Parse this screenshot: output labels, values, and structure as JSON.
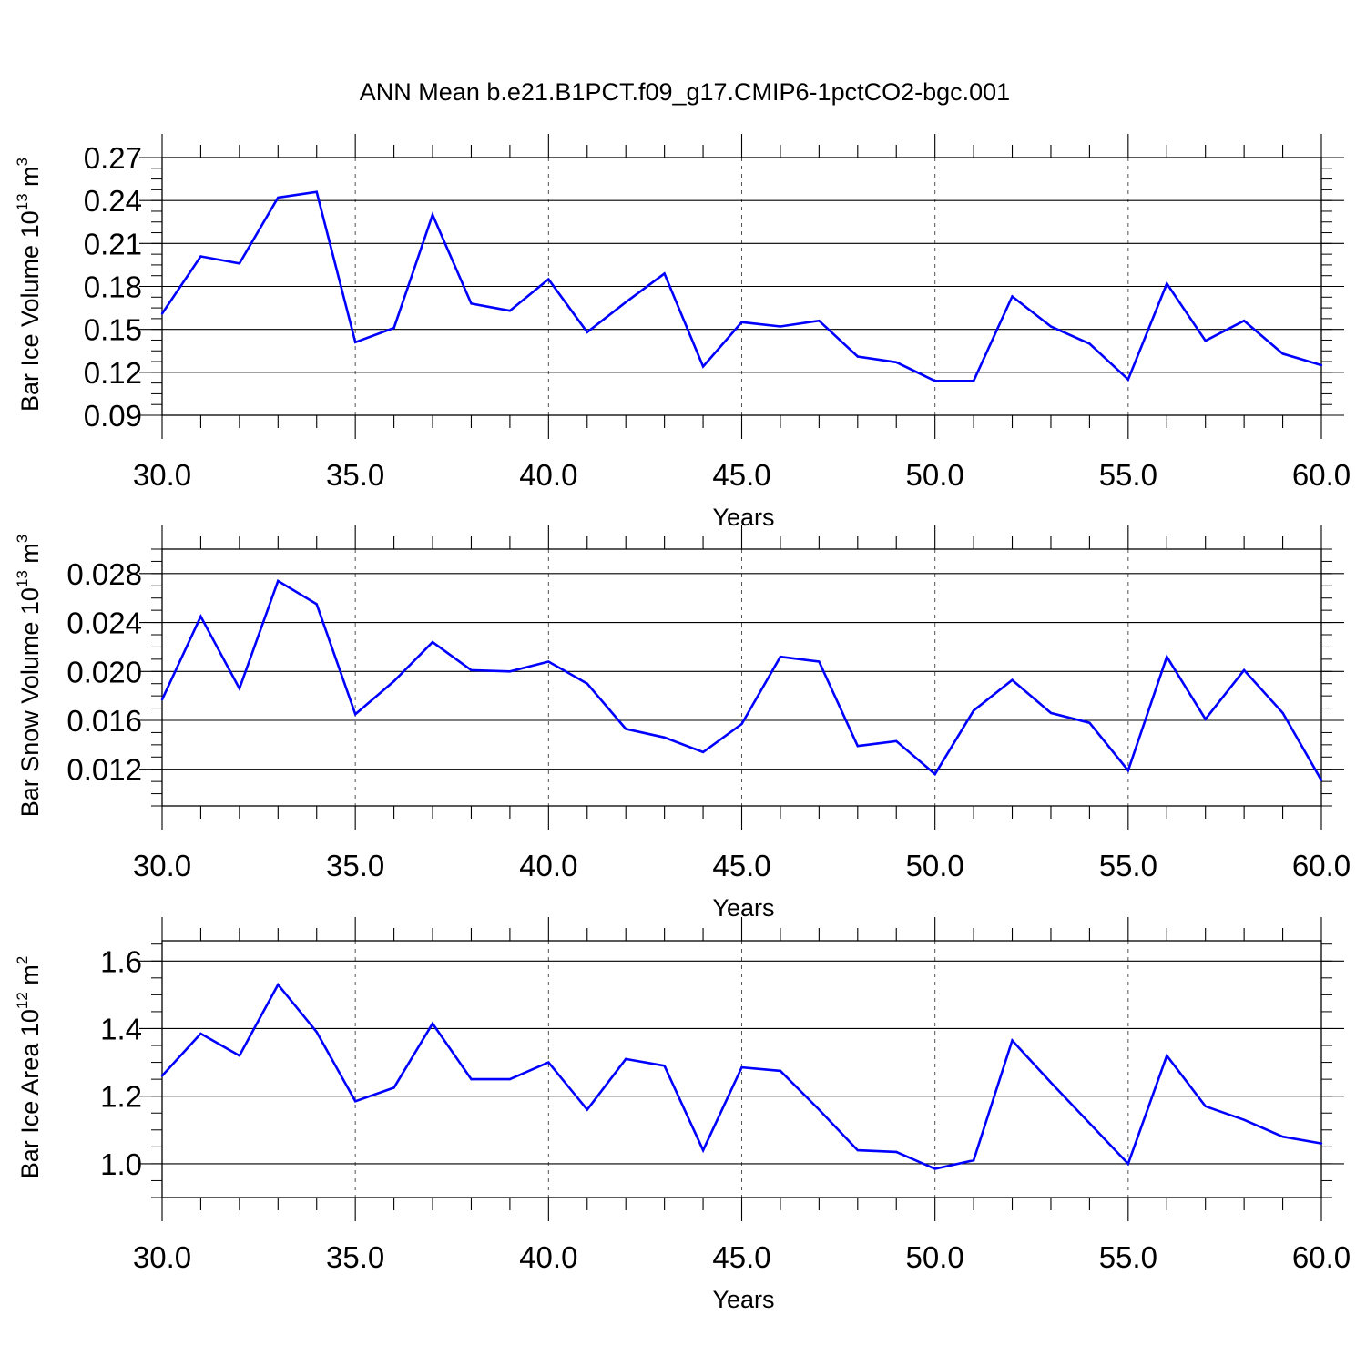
{
  "title": "ANN Mean b.e21.B1PCT.f09_g17.CMIP6-1pctCO2-bgc.001",
  "colors": {
    "line": "#0000ff",
    "axis": "#000000",
    "grid": "#555555"
  },
  "chart_data": [
    {
      "type": "line",
      "ylabel": {
        "text": "Bar Ice Volume 10",
        "exp": "13",
        "unit": " m",
        "unit_exp": "3"
      },
      "xlabel": "Years",
      "xlim": [
        30,
        60
      ],
      "ylim": [
        0.09,
        0.27
      ],
      "yticks": [
        "0.09",
        "0.12",
        "0.15",
        "0.18",
        "0.21",
        "0.24",
        "0.27"
      ],
      "xticks": [
        "30.0",
        "35.0",
        "40.0",
        "45.0",
        "50.0",
        "55.0",
        "60.0"
      ],
      "x": [
        30,
        31,
        32,
        33,
        34,
        35,
        36,
        37,
        38,
        39,
        40,
        41,
        42,
        43,
        44,
        45,
        46,
        47,
        48,
        49,
        50,
        51,
        52,
        53,
        54,
        55,
        56,
        57,
        58,
        59,
        60
      ],
      "values": [
        0.161,
        0.201,
        0.196,
        0.242,
        0.246,
        0.141,
        0.151,
        0.23,
        0.168,
        0.163,
        0.185,
        0.148,
        0.169,
        0.189,
        0.124,
        0.155,
        0.152,
        0.156,
        0.131,
        0.127,
        0.114,
        0.114,
        0.173,
        0.152,
        0.14,
        0.115,
        0.182,
        0.142,
        0.156,
        0.133,
        0.125
      ]
    },
    {
      "type": "line",
      "ylabel": {
        "text": "Bar Snow Volume 10",
        "exp": "13",
        "unit": " m",
        "unit_exp": "3"
      },
      "xlabel": "Years",
      "xlim": [
        30,
        60
      ],
      "ylim": [
        0.009,
        0.03
      ],
      "yticks": [
        "0.012",
        "0.016",
        "0.020",
        "0.024",
        "0.028"
      ],
      "xticks": [
        "30.0",
        "35.0",
        "40.0",
        "45.0",
        "50.0",
        "55.0",
        "60.0"
      ],
      "x": [
        30,
        31,
        32,
        33,
        34,
        35,
        36,
        37,
        38,
        39,
        40,
        41,
        42,
        43,
        44,
        45,
        46,
        47,
        48,
        49,
        50,
        51,
        52,
        53,
        54,
        55,
        56,
        57,
        58,
        59,
        60
      ],
      "values": [
        0.0177,
        0.0245,
        0.0186,
        0.0274,
        0.0255,
        0.0165,
        0.0192,
        0.0224,
        0.0201,
        0.02,
        0.0208,
        0.019,
        0.0153,
        0.0146,
        0.0134,
        0.0157,
        0.0212,
        0.0208,
        0.0139,
        0.0143,
        0.0116,
        0.0168,
        0.0193,
        0.0166,
        0.0158,
        0.0119,
        0.0212,
        0.0161,
        0.0201,
        0.0166,
        0.0111
      ]
    },
    {
      "type": "line",
      "ylabel": {
        "text": "Bar Ice Area 10",
        "exp": "12",
        "unit": " m",
        "unit_exp": "2"
      },
      "xlabel": "Years",
      "xlim": [
        30,
        60
      ],
      "ylim": [
        0.9,
        1.66
      ],
      "yticks": [
        "1.0",
        "1.2",
        "1.4",
        "1.6"
      ],
      "xticks": [
        "30.0",
        "35.0",
        "40.0",
        "45.0",
        "50.0",
        "55.0",
        "60.0"
      ],
      "x": [
        30,
        31,
        32,
        33,
        34,
        35,
        36,
        37,
        38,
        39,
        40,
        41,
        42,
        43,
        44,
        45,
        46,
        47,
        48,
        49,
        50,
        51,
        52,
        53,
        54,
        55,
        56,
        57,
        58,
        59,
        60
      ],
      "values": [
        1.26,
        1.385,
        1.32,
        1.53,
        1.39,
        1.185,
        1.225,
        1.415,
        1.25,
        1.25,
        1.3,
        1.16,
        1.31,
        1.29,
        1.04,
        1.285,
        1.275,
        1.16,
        1.04,
        1.035,
        0.985,
        1.01,
        1.365,
        1.24,
        1.12,
        1.0,
        1.32,
        1.17,
        1.13,
        1.08,
        1.06
      ]
    }
  ]
}
